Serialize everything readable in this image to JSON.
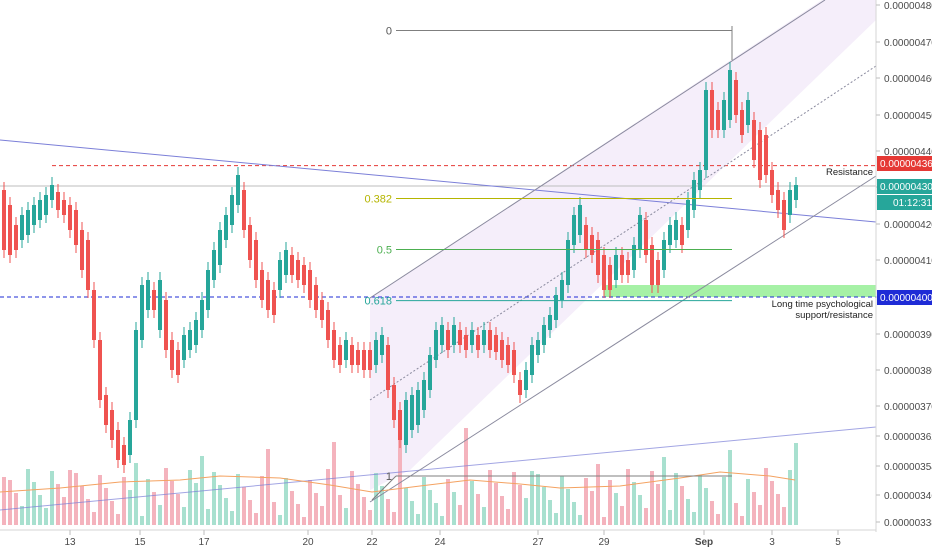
{
  "colors": {
    "up": "#26a69a",
    "down": "#ef5350",
    "up_vol": "#a8e0cf",
    "down_vol": "#f4b3bd",
    "resistance": "#e53935",
    "support": "#1e2bd6",
    "channel": "#8a8a9e",
    "trendline": "#7b7fd8",
    "fib_0": "#7f7f7f",
    "fib_382": "#b5b500",
    "fib_5": "#4caf50",
    "fib_618": "#26a69a",
    "zone": "#90ee90",
    "price_tag": "#26a69a",
    "timer_tag": "#26a69a"
  },
  "chart_data": {
    "type": "candlestick",
    "y_axis_ticks": [
      "0.00000480",
      "0.00000470",
      "0.00000460",
      "0.00000450",
      "0.00000440",
      "0.00000430",
      "0.00000420",
      "0.00000410",
      "0.00000400",
      "0.00000390",
      "0.00000380",
      "0.00000370",
      "0.00000362",
      "0.00000354",
      "0.00000346",
      "0.00000338"
    ],
    "x_axis_ticks": [
      "13",
      "15",
      "17",
      "20",
      "22",
      "24",
      "27",
      "29",
      "Sep",
      "3",
      "5"
    ],
    "price_tags": {
      "resistance": "0.00000436",
      "current": "0.00000430",
      "timer": "01:12:31",
      "support": "0.00000400"
    },
    "fib_levels": [
      {
        "label": "0",
        "value": 4.73e-06
      },
      {
        "label": "0.382",
        "value": 4.27e-06
      },
      {
        "label": "0.5",
        "value": 4.13e-06
      },
      {
        "label": "0.618",
        "value": 3.99e-06
      },
      {
        "label": "1",
        "value": 3.52e-06
      }
    ],
    "annotations": {
      "resistance": "Resistance",
      "support_line1": "Long time psychological",
      "support_line2": "support/resistance"
    },
    "resistance_level": 4.36e-06,
    "support_level": 4e-06
  }
}
